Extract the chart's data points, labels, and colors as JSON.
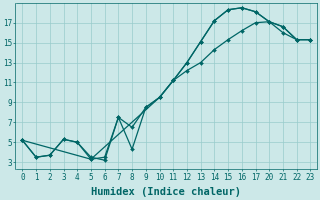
{
  "xlabel": "Humidex (Indice chaleur)",
  "background_color": "#cce8e8",
  "line_color": "#006666",
  "grid_color": "#99cccc",
  "line1_x": [
    0,
    1,
    2,
    3,
    4,
    5,
    6,
    7,
    8,
    9,
    10,
    11,
    12,
    13,
    14,
    15,
    16,
    17,
    18,
    19,
    20,
    21
  ],
  "line1_y": [
    5.2,
    3.5,
    3.7,
    5.3,
    5.0,
    3.5,
    3.2,
    7.5,
    4.3,
    8.5,
    9.5,
    11.2,
    13.0,
    15.1,
    17.2,
    18.3,
    18.5,
    18.1,
    17.1,
    16.6,
    15.3,
    15.3
  ],
  "line2_x": [
    0,
    1,
    2,
    3,
    4,
    5,
    6,
    7,
    8,
    9,
    10,
    11,
    12,
    13,
    14,
    15,
    16,
    17,
    18,
    19,
    20,
    21
  ],
  "line2_y": [
    5.2,
    3.5,
    3.7,
    5.3,
    5.0,
    3.3,
    3.5,
    7.5,
    6.5,
    8.5,
    9.5,
    11.2,
    13.0,
    15.1,
    17.2,
    18.3,
    18.5,
    18.1,
    17.1,
    16.6,
    15.3,
    15.3
  ],
  "line3_x": [
    0,
    5,
    10,
    11,
    12,
    13,
    14,
    15,
    16,
    17,
    18,
    19,
    20,
    21
  ],
  "line3_y": [
    5.2,
    3.3,
    9.5,
    11.2,
    12.2,
    13.0,
    14.3,
    15.3,
    16.2,
    17.0,
    17.1,
    16.0,
    15.3,
    15.3
  ],
  "xtick_positions": [
    0,
    1,
    2,
    3,
    4,
    5,
    6,
    7,
    8,
    9,
    10,
    11,
    12,
    13,
    14,
    15,
    16,
    17,
    18,
    19,
    20,
    21
  ],
  "xtick_labels": [
    "0",
    "1",
    "2",
    "3",
    "4",
    "5",
    "6",
    "7",
    "8",
    "9",
    "10",
    "11",
    "12",
    "13",
    "14",
    "15",
    "16",
    "17",
    "20",
    "21",
    "22",
    "23"
  ],
  "ytick_positions": [
    3,
    5,
    7,
    9,
    11,
    13,
    15,
    17
  ],
  "ytick_labels": [
    "3",
    "5",
    "7",
    "9",
    "11",
    "13",
    "15",
    "17"
  ],
  "xlim": [
    -0.5,
    21.5
  ],
  "ylim": [
    2.3,
    19.0
  ],
  "tick_fontsize": 5.5,
  "xlabel_fontsize": 7.5
}
